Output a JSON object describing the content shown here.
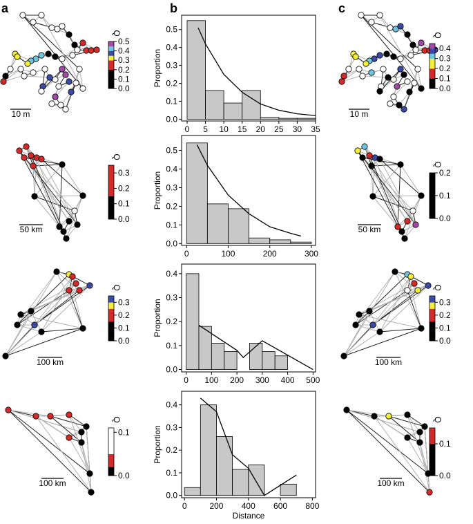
{
  "panels": [
    "a",
    "b",
    "c"
  ],
  "palette": {
    "k": "#000000",
    "w": "#ffffff",
    "r": "#d42a2a",
    "y": "#f2ee3a",
    "b": "#3a4aa8",
    "c": "#6ec6e0",
    "m": "#a24aa8"
  },
  "chart_data": [
    {
      "type": "histogram",
      "ylabel": "Proportion",
      "color": "#c8c8c8",
      "bins": [
        0,
        5,
        10,
        15,
        20,
        25,
        30,
        35
      ],
      "values": [
        0.55,
        0.16,
        0.09,
        0.16,
        0.01,
        0.005,
        0.005
      ],
      "fit": {
        "x": [
          3,
          5,
          10,
          15,
          20,
          25,
          30,
          35
        ],
        "y": [
          0.51,
          0.42,
          0.25,
          0.15,
          0.085,
          0.05,
          0.03,
          0.02
        ]
      },
      "xlim": [
        -1.5,
        35
      ],
      "ylim": [
        -0.01,
        0.58
      ],
      "xticks": [
        0,
        5,
        10,
        15,
        20,
        25,
        30,
        35
      ],
      "yticks": [
        {
          "value": 0,
          "label": "0.0"
        },
        0.1,
        0.2,
        0.3,
        0.4,
        0.5
      ]
    },
    {
      "type": "histogram",
      "ylabel": "Proportion",
      "color": "#c8c8c8",
      "bins": [
        0,
        50,
        100,
        150,
        200,
        250,
        300
      ],
      "values": [
        0.54,
        0.213,
        0.187,
        0.03,
        0.02,
        0.008
      ],
      "fit": {
        "x": [
          25,
          50,
          100,
          150,
          200,
          250,
          275
        ],
        "y": [
          0.53,
          0.42,
          0.26,
          0.16,
          0.09,
          0.055,
          0.04
        ]
      },
      "xlim": [
        -12,
        310
      ],
      "ylim": [
        -0.01,
        0.58
      ],
      "xticks": [
        0,
        100,
        200,
        300
      ],
      "yticks": [
        {
          "value": 0,
          "label": "0.0"
        },
        0.1,
        0.2,
        0.3,
        0.4,
        0.5
      ]
    },
    {
      "type": "histogram",
      "ylabel": "Proportion",
      "color": "#c8c8c8",
      "bins": [
        0,
        50,
        100,
        150,
        200,
        250,
        300,
        350,
        400
      ],
      "values": [
        0.4,
        0.18,
        0.11,
        0.075,
        0,
        0.11,
        0.075,
        0.057
      ],
      "fit": {
        "x": [
          50,
          200,
          225,
          300,
          500
        ],
        "y": [
          0.185,
          0.08,
          0.05,
          0.12,
          0
        ]
      },
      "xlim": [
        -18,
        510
      ],
      "ylim": [
        -0.01,
        0.44
      ],
      "xticks": [
        0,
        100,
        200,
        300,
        400,
        500
      ],
      "yticks": [
        {
          "value": 0,
          "label": "0.0"
        },
        0.1,
        0.2,
        0.3,
        0.4
      ]
    },
    {
      "type": "histogram",
      "ylabel": "Proportion",
      "xlabel": "Distance",
      "color": "#c8c8c8",
      "bins": [
        0,
        100,
        200,
        300,
        400,
        500,
        600,
        700
      ],
      "values": [
        0.035,
        0.4,
        0.26,
        0.115,
        0.135,
        0,
        0.05
      ],
      "fit": {
        "x": [
          100,
          200,
          300,
          400,
          500,
          700
        ],
        "y": [
          0.43,
          0.37,
          0.18,
          0.12,
          0,
          0.09
        ]
      },
      "xlim": [
        -18,
        820
      ],
      "ylim": [
        -0.01,
        0.46
      ],
      "xticks": [
        0,
        200,
        400,
        600,
        800
      ],
      "yticks": [
        {
          "value": 0,
          "label": "0.0"
        },
        0.1,
        0.2,
        0.3,
        0.4
      ]
    }
  ],
  "colorbars": [
    {
      "label": "Q",
      "lim": [
        0,
        0.5
      ],
      "colors": "kkkkrrybcm",
      "ticks": [
        {
          "value": 0,
          "label": "0.0"
        },
        0.1,
        0.2,
        0.3,
        0.4,
        0.5
      ]
    },
    {
      "label": "Q",
      "lim": [
        0,
        0.35
      ],
      "colors": "kkkrrrr",
      "ticks": [
        {
          "value": 0,
          "label": "0.0"
        },
        0.1,
        0.2,
        0.3
      ]
    },
    {
      "label": "Q",
      "lim": [
        0,
        0.35
      ],
      "colors": "kkkrryb",
      "ticks": [
        {
          "value": 0,
          "label": "0.0"
        },
        0.1,
        0.2,
        0.3
      ]
    },
    {
      "label": "Q",
      "lim": [
        0,
        0.11
      ],
      "colors": "kkrrrwwwwww",
      "ticks": [
        {
          "value": 0,
          "label": "0.0"
        },
        0.1
      ]
    },
    {
      "label": "Q",
      "lim": [
        0,
        0.45
      ],
      "colors": "kkrryycbm",
      "ticks": [
        {
          "value": 0,
          "label": "0.0"
        },
        0.1,
        0.2,
        0.3,
        0.4
      ]
    },
    {
      "label": "Q",
      "lim": [
        0,
        0.2
      ],
      "colors": "kkkk",
      "ticks": [
        {
          "value": 0,
          "label": "0.0"
        },
        0.1,
        0.2
      ]
    },
    {
      "label": "Q",
      "lim": [
        0,
        0.35
      ],
      "colors": "kkkrryb",
      "ticks": [
        {
          "value": 0,
          "label": "0.0"
        },
        0.1,
        0.2,
        0.3
      ]
    },
    {
      "label": "Q",
      "lim": [
        0,
        0.15
      ],
      "colors": "kkr",
      "ticks": [
        {
          "value": 0,
          "label": "0.0"
        },
        0.1
      ]
    }
  ],
  "networks": [
    {
      "scale_label": "10 m",
      "colors": "wwwwwwkkwrrrrwwkkcccyyywkrwwwwbbwwmmbwmwwwbwww"
    },
    {
      "scale_label": "50 km",
      "colors": "rrrrrrrkkkwkkkkk"
    },
    {
      "scale_label": "100 km",
      "colors": "kyrrrrbbkkkkkk"
    },
    {
      "scale_label": "100 km",
      "colors": "rrrrkkrkkk"
    },
    {
      "scale_label": "10 m",
      "colors": "wwwwcbkkwrrbmwwkkbbcyyywrrwcwwkwkwbkwmwwkbkwwk"
    },
    {
      "scale_label": "50 km",
      "colors": "ycrbkkkkkkwrrkkm"
    },
    {
      "scale_label": "100 km",
      "colors": "kcyrwybbkkkkkk"
    },
    {
      "scale_label": "100 km",
      "colors": "kkykkkkkkr"
    }
  ]
}
